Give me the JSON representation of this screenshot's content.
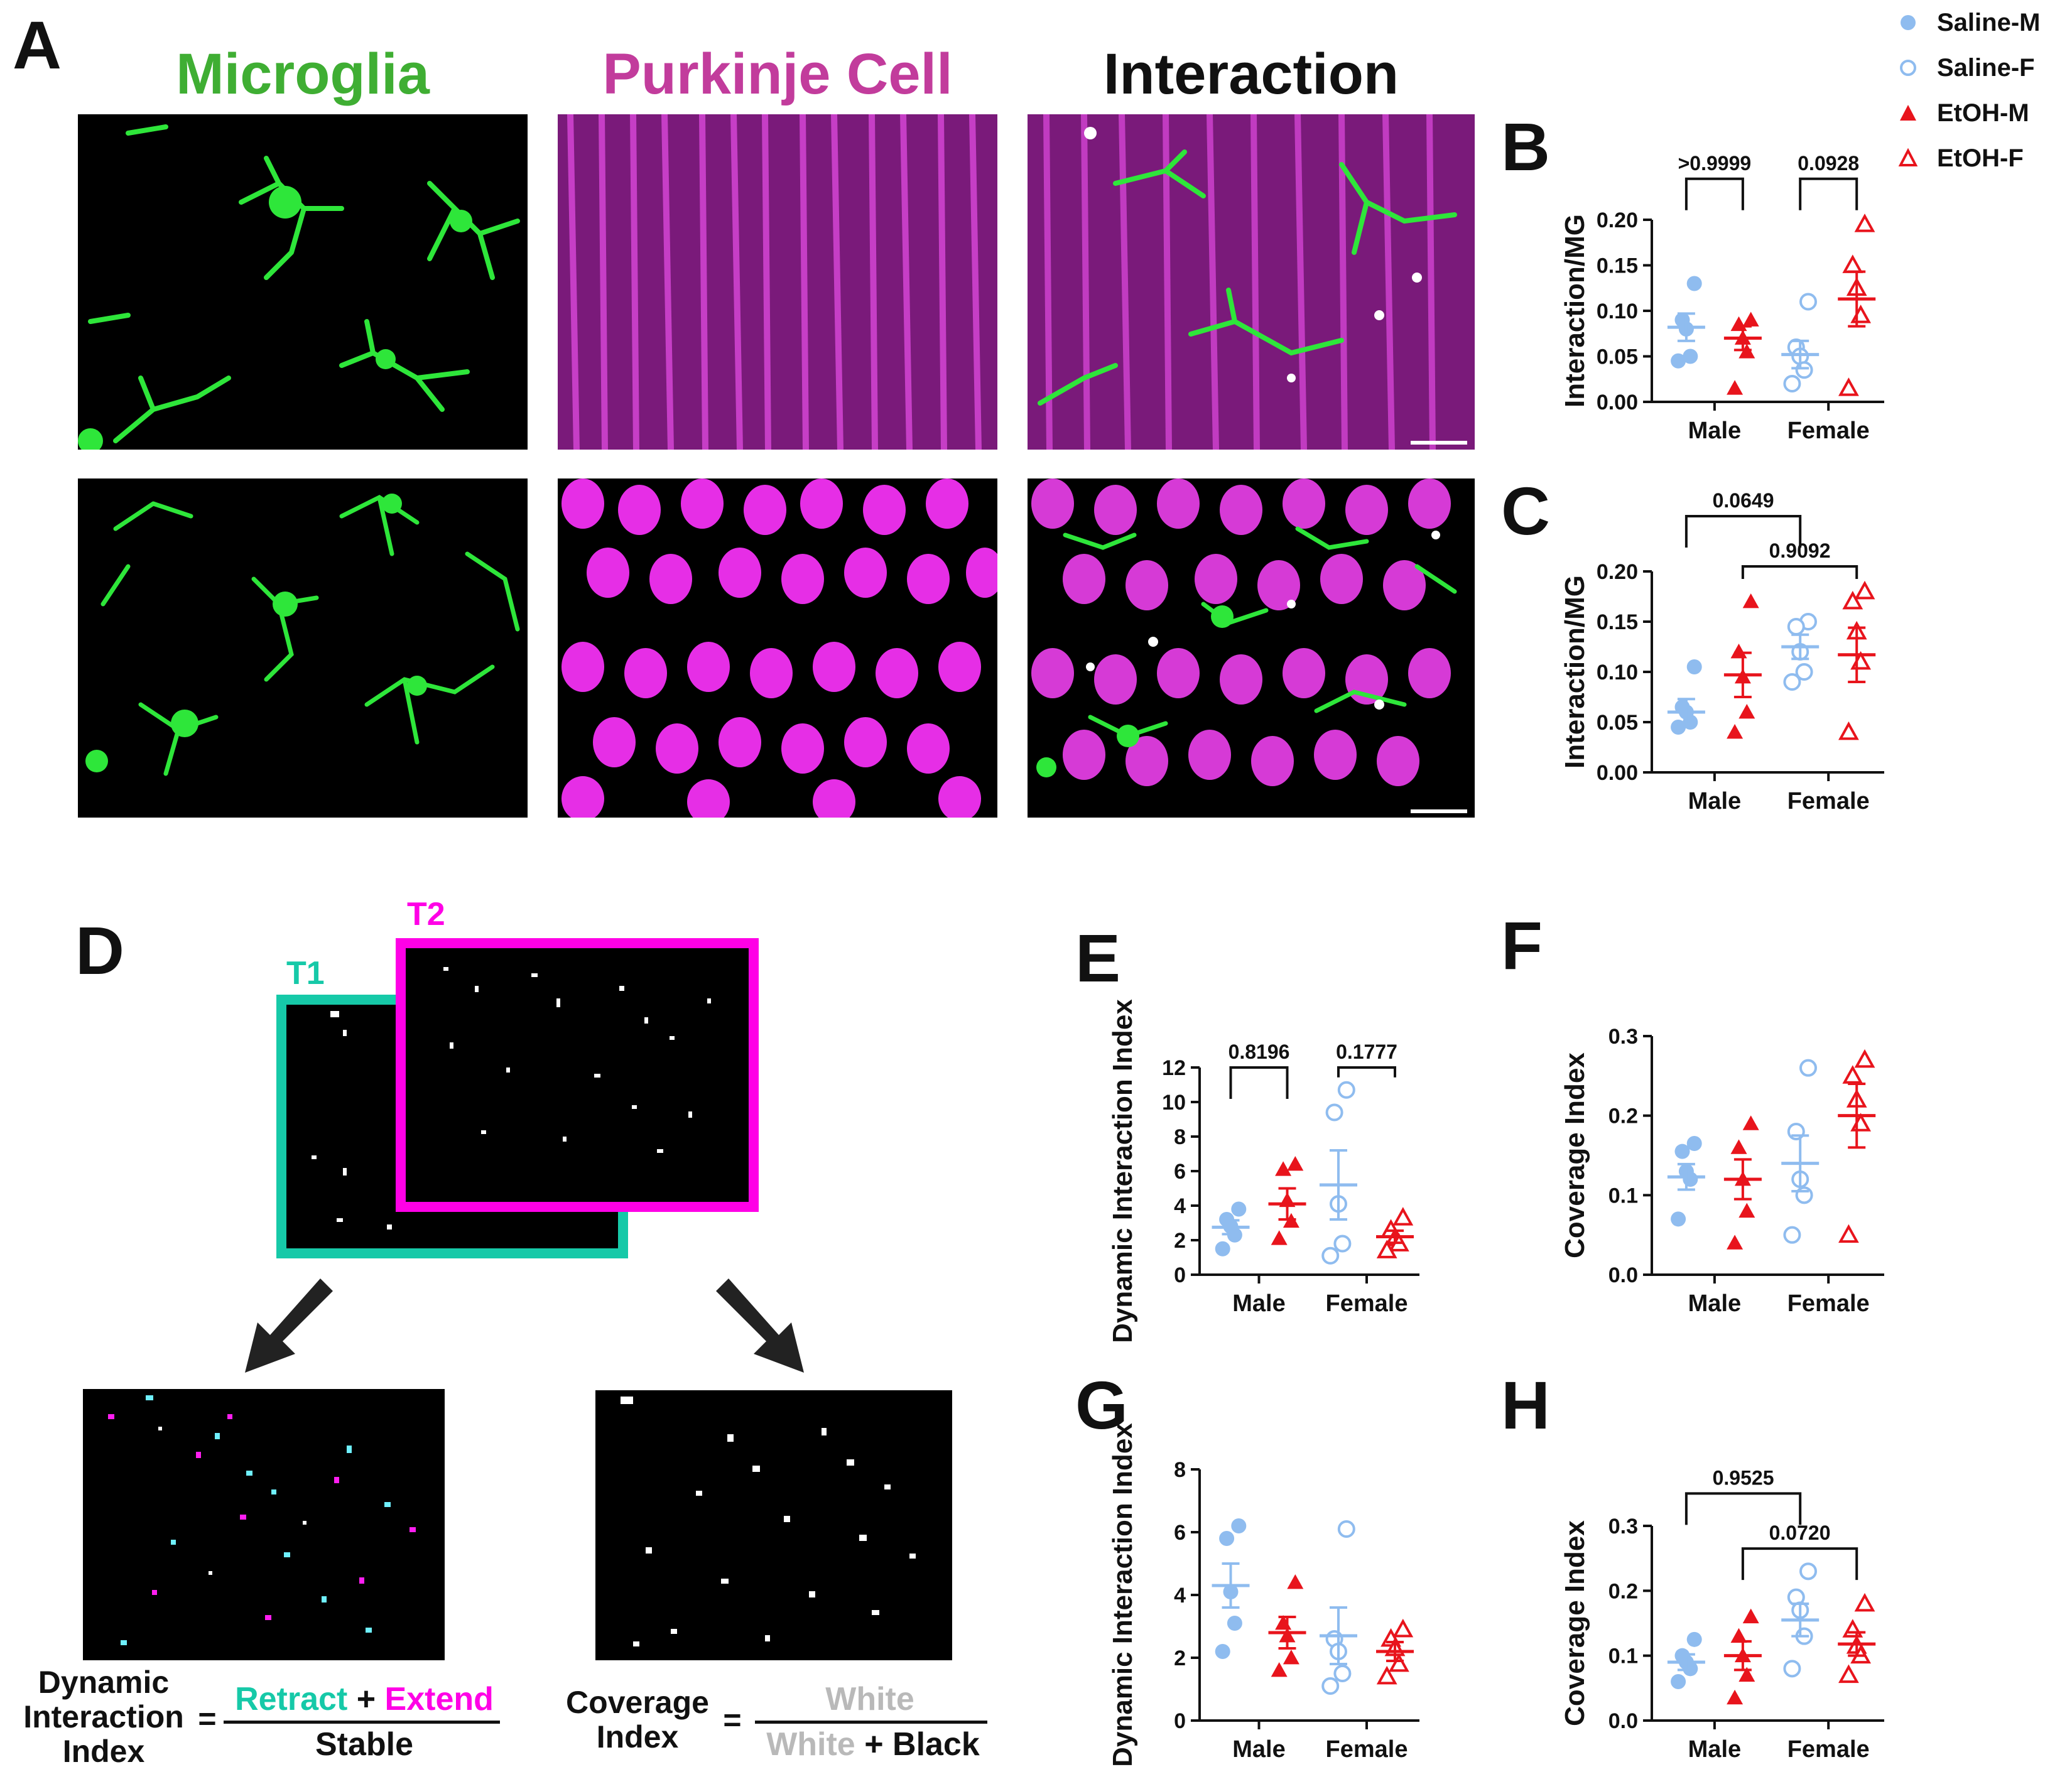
{
  "colors": {
    "saline": "#8fbcef",
    "etoh": "#e8141c",
    "microglia": "#3fae33",
    "purkinje": "#c23c9c",
    "t1": "#16c9a8",
    "t2": "#ff00e6",
    "white_label": "#b9b9b9"
  },
  "panel_a": {
    "letter": "A",
    "titles": [
      "Microglia",
      "Purkinje Cell",
      "Interaction"
    ]
  },
  "legend": [
    {
      "label": "Saline-M",
      "marker": "filled-circle",
      "color": "#8fbcef"
    },
    {
      "label": "Saline-F",
      "marker": "open-circle",
      "color": "#8fbcef"
    },
    {
      "label": "EtOH-M",
      "marker": "filled-triangle",
      "color": "#e8141c"
    },
    {
      "label": "EtOH-F",
      "marker": "open-triangle",
      "color": "#e8141c"
    }
  ],
  "panel_d": {
    "letter": "D",
    "t1": "T1",
    "t2": "T2",
    "dyn_label": [
      "Dynamic",
      "Interaction",
      "Index"
    ],
    "equals": "=",
    "retract": "Retract",
    "plus": "+",
    "extend": "Extend",
    "stable": "Stable",
    "cov_label": [
      "Coverage",
      "Index"
    ],
    "white": "White",
    "black": "Black"
  },
  "chart_data": [
    {
      "panel": "B",
      "type": "scatter",
      "ylabel": "Interaction/MG",
      "ylim": [
        0,
        0.2
      ],
      "yticks": [
        "0.00",
        "0.05",
        "0.10",
        "0.15",
        "0.20"
      ],
      "categories": [
        "Male",
        "Female"
      ],
      "series": [
        {
          "name": "Saline-M",
          "cat": 0,
          "values": [
            0.13,
            0.09,
            0.08,
            0.05,
            0.045
          ],
          "mean": 0.082,
          "sem": 0.015
        },
        {
          "name": "EtOH-M",
          "cat": 0,
          "values": [
            0.09,
            0.085,
            0.07,
            0.055,
            0.015
          ],
          "mean": 0.07,
          "sem": 0.013
        },
        {
          "name": "Saline-F",
          "cat": 1,
          "values": [
            0.11,
            0.06,
            0.05,
            0.035,
            0.02
          ],
          "mean": 0.052,
          "sem": 0.015
        },
        {
          "name": "EtOH-F",
          "cat": 1,
          "values": [
            0.195,
            0.15,
            0.125,
            0.095,
            0.015
          ],
          "mean": 0.113,
          "sem": 0.03
        }
      ],
      "brackets": [
        {
          "label": ">0.9999",
          "from": "Saline-M",
          "to": "EtOH-M",
          "level": 0.245
        },
        {
          "label": "0.0928",
          "from": "Saline-F",
          "to": "EtOH-F",
          "level": 0.245
        }
      ]
    },
    {
      "panel": "C",
      "type": "scatter",
      "ylabel": "Interaction/MG",
      "ylim": [
        0,
        0.2
      ],
      "yticks": [
        "0.00",
        "0.05",
        "0.10",
        "0.15",
        "0.20"
      ],
      "categories": [
        "Male",
        "Female"
      ],
      "series": [
        {
          "name": "Saline-M",
          "cat": 0,
          "values": [
            0.105,
            0.065,
            0.06,
            0.05,
            0.045
          ],
          "mean": 0.06,
          "sem": 0.013
        },
        {
          "name": "EtOH-M",
          "cat": 0,
          "values": [
            0.17,
            0.12,
            0.095,
            0.06,
            0.04
          ],
          "mean": 0.097,
          "sem": 0.022
        },
        {
          "name": "Saline-F",
          "cat": 1,
          "values": [
            0.15,
            0.145,
            0.12,
            0.1,
            0.09
          ],
          "mean": 0.125,
          "sem": 0.012
        },
        {
          "name": "EtOH-F",
          "cat": 1,
          "values": [
            0.18,
            0.17,
            0.14,
            0.11,
            0.04
          ],
          "mean": 0.117,
          "sem": 0.027
        }
      ],
      "brackets": [
        {
          "label": "0.0649",
          "from": "Saline-M",
          "to": "Saline-F",
          "level": 0.255
        },
        {
          "label": "0.9092",
          "from": "EtOH-M",
          "to": "EtOH-F",
          "level": 0.205
        }
      ]
    },
    {
      "panel": "E",
      "type": "scatter",
      "ylabel": "Dynamic Interaction Index",
      "ylim": [
        0,
        12
      ],
      "yticks": [
        "0",
        "2",
        "4",
        "6",
        "8",
        "10",
        "12"
      ],
      "categories": [
        "Male",
        "Female"
      ],
      "series": [
        {
          "name": "Saline-M",
          "cat": 0,
          "values": [
            3.8,
            3.2,
            2.8,
            2.3,
            1.5
          ],
          "mean": 2.75,
          "sem": 0.4
        },
        {
          "name": "EtOH-M",
          "cat": 0,
          "values": [
            6.4,
            6.1,
            4.3,
            3.1,
            2.1
          ],
          "mean": 4.1,
          "sem": 0.9
        },
        {
          "name": "Saline-F",
          "cat": 1,
          "values": [
            10.7,
            9.4,
            4.1,
            1.8,
            1.1
          ],
          "mean": 5.2,
          "sem": 2.0
        },
        {
          "name": "EtOH-F",
          "cat": 1,
          "values": [
            3.3,
            2.6,
            2.1,
            1.8,
            1.4
          ],
          "mean": 2.2,
          "sem": 0.35
        }
      ],
      "brackets": [
        {
          "label": "0.8196",
          "from": "Saline-M",
          "to": "EtOH-M",
          "level": 12.0
        },
        {
          "label": "0.1777",
          "from": "Saline-F",
          "to": "EtOH-F",
          "level": 12.0
        }
      ]
    },
    {
      "panel": "F",
      "type": "scatter",
      "ylabel": "Coverage Index",
      "ylim": [
        0,
        0.3
      ],
      "yticks": [
        "0.0",
        "0.1",
        "0.2",
        "0.3"
      ],
      "categories": [
        "Male",
        "Female"
      ],
      "series": [
        {
          "name": "Saline-M",
          "cat": 0,
          "values": [
            0.165,
            0.155,
            0.13,
            0.12,
            0.07
          ],
          "mean": 0.123,
          "sem": 0.016
        },
        {
          "name": "EtOH-M",
          "cat": 0,
          "values": [
            0.19,
            0.16,
            0.12,
            0.08,
            0.04
          ],
          "mean": 0.12,
          "sem": 0.025
        },
        {
          "name": "Saline-F",
          "cat": 1,
          "values": [
            0.26,
            0.18,
            0.12,
            0.1,
            0.05
          ],
          "mean": 0.14,
          "sem": 0.035
        },
        {
          "name": "EtOH-F",
          "cat": 1,
          "values": [
            0.27,
            0.25,
            0.22,
            0.19,
            0.05
          ],
          "mean": 0.2,
          "sem": 0.04
        }
      ],
      "brackets": []
    },
    {
      "panel": "G",
      "type": "scatter",
      "ylabel": "Dynamic Interaction Index",
      "ylim": [
        0,
        8
      ],
      "yticks": [
        "0",
        "2",
        "4",
        "6",
        "8"
      ],
      "categories": [
        "Male",
        "Female"
      ],
      "series": [
        {
          "name": "Saline-M",
          "cat": 0,
          "values": [
            6.2,
            5.8,
            4.1,
            3.1,
            2.2
          ],
          "mean": 4.3,
          "sem": 0.7
        },
        {
          "name": "EtOH-M",
          "cat": 0,
          "values": [
            4.4,
            3.1,
            2.7,
            2.0,
            1.6
          ],
          "mean": 2.8,
          "sem": 0.5
        },
        {
          "name": "Saline-F",
          "cat": 1,
          "values": [
            6.1,
            2.6,
            2.2,
            1.5,
            1.1
          ],
          "mean": 2.7,
          "sem": 0.9
        },
        {
          "name": "EtOH-F",
          "cat": 1,
          "values": [
            2.9,
            2.6,
            2.3,
            1.8,
            1.4
          ],
          "mean": 2.2,
          "sem": 0.3
        }
      ],
      "brackets": []
    },
    {
      "panel": "H",
      "type": "scatter",
      "ylabel": "Coverage Index",
      "ylim": [
        0,
        0.3
      ],
      "yticks": [
        "0.0",
        "0.1",
        "0.2",
        "0.3"
      ],
      "categories": [
        "Male",
        "Female"
      ],
      "series": [
        {
          "name": "Saline-M",
          "cat": 0,
          "values": [
            0.125,
            0.1,
            0.09,
            0.08,
            0.06
          ],
          "mean": 0.09,
          "sem": 0.012
        },
        {
          "name": "EtOH-M",
          "cat": 0,
          "values": [
            0.16,
            0.13,
            0.1,
            0.07,
            0.035
          ],
          "mean": 0.1,
          "sem": 0.022
        },
        {
          "name": "Saline-F",
          "cat": 1,
          "values": [
            0.23,
            0.19,
            0.17,
            0.13,
            0.08
          ],
          "mean": 0.155,
          "sem": 0.025
        },
        {
          "name": "EtOH-F",
          "cat": 1,
          "values": [
            0.18,
            0.14,
            0.115,
            0.1,
            0.07
          ],
          "mean": 0.118,
          "sem": 0.018
        }
      ],
      "brackets": [
        {
          "label": "0.9525",
          "from": "Saline-M",
          "to": "Saline-F",
          "level": 0.35
        },
        {
          "label": "0.0720",
          "from": "EtOH-M",
          "to": "EtOH-F",
          "level": 0.265
        }
      ]
    }
  ]
}
